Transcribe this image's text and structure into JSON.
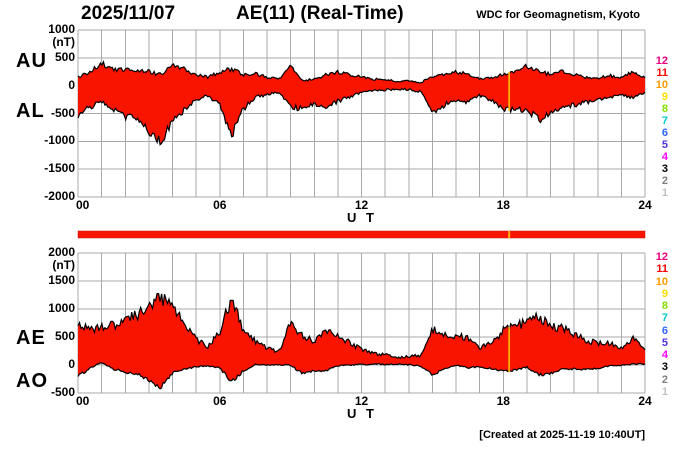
{
  "header": {
    "date": "2025/11/07",
    "title": "AE(11) (Real-Time)",
    "credit": "WDC for Geomagnetism, Kyoto"
  },
  "footer": {
    "created_note": "[Created at 2025-11-19 10:40UT]"
  },
  "palette": {
    "fill_red": "#F91400",
    "bar_red": "#F91400",
    "grid_gray": "#A8A8A8",
    "curve_black": "#000000",
    "marker_yellow": "#FFC000",
    "bar_marker_orange": "#FFAA00"
  },
  "station_count_scale": {
    "values": [
      12,
      11,
      10,
      9,
      8,
      7,
      6,
      5,
      4,
      3,
      2,
      1
    ],
    "colors": [
      "#E8007D",
      "#FF0000",
      "#FF9900",
      "#FFDD00",
      "#86DD00",
      "#00CCCC",
      "#3366FF",
      "#5533DD",
      "#FF00FF",
      "#000000",
      "#808080",
      "#C0C0C0"
    ]
  },
  "chart_data": [
    {
      "type": "area",
      "panel": "AU-AL",
      "ylabel_unit": "(nT)",
      "ylim": [
        -2000,
        1000
      ],
      "yticks": [
        1000,
        500,
        0,
        -500,
        -1000,
        -1500,
        -2000
      ],
      "xlabel": "U T",
      "xlim": [
        0,
        24
      ],
      "xticks": [
        "00",
        "06",
        "12",
        "18",
        "24"
      ],
      "xtick_hours": [
        0,
        6,
        12,
        18,
        24
      ],
      "grid": true,
      "marker_hour": 18.25,
      "x_hours": [
        0,
        0.5,
        1,
        1.5,
        2,
        2.5,
        3,
        3.5,
        4,
        4.5,
        5,
        5.5,
        6,
        6.5,
        7,
        7.5,
        8,
        8.5,
        9,
        9.5,
        10,
        10.5,
        11,
        11.5,
        12,
        12.5,
        13,
        13.5,
        14,
        14.5,
        15,
        15.5,
        16,
        16.5,
        17,
        17.5,
        18,
        18.5,
        19,
        19.5,
        20,
        20.5,
        21,
        21.5,
        22,
        22.5,
        23,
        23.5,
        24
      ],
      "series": [
        {
          "name": "AU",
          "values": [
            160,
            250,
            400,
            280,
            300,
            280,
            250,
            200,
            370,
            300,
            200,
            150,
            250,
            300,
            200,
            220,
            150,
            120,
            380,
            100,
            110,
            200,
            250,
            200,
            150,
            120,
            100,
            80,
            80,
            60,
            150,
            200,
            250,
            200,
            120,
            130,
            200,
            250,
            350,
            260,
            200,
            260,
            200,
            150,
            130,
            180,
            150,
            250,
            150
          ]
        },
        {
          "name": "AL",
          "values": [
            -560,
            -380,
            -300,
            -420,
            -550,
            -600,
            -800,
            -1000,
            -650,
            -450,
            -250,
            -180,
            -350,
            -900,
            -420,
            -200,
            -160,
            -120,
            -380,
            -420,
            -310,
            -400,
            -280,
            -200,
            -130,
            -90,
            -80,
            -60,
            -70,
            -110,
            -480,
            -350,
            -260,
            -300,
            -180,
            -260,
            -420,
            -440,
            -420,
            -620,
            -500,
            -400,
            -340,
            -300,
            -250,
            -210,
            -160,
            -220,
            -110
          ]
        }
      ]
    },
    {
      "type": "area",
      "panel": "AE-AO",
      "ylabel_unit": "(nT)",
      "ylim": [
        -500,
        2000
      ],
      "yticks": [
        2000,
        1500,
        1000,
        500,
        0,
        -500
      ],
      "xlabel": "U T",
      "xlim": [
        0,
        24
      ],
      "xticks": [
        "00",
        "06",
        "12",
        "18",
        "24"
      ],
      "xtick_hours": [
        0,
        6,
        12,
        18,
        24
      ],
      "grid": true,
      "marker_hour": 18.25,
      "x_hours": [
        0,
        0.5,
        1,
        1.5,
        2,
        2.5,
        3,
        3.5,
        4,
        4.5,
        5,
        5.5,
        6,
        6.5,
        7,
        7.5,
        8,
        8.5,
        9,
        9.5,
        10,
        10.5,
        11,
        11.5,
        12,
        12.5,
        13,
        13.5,
        14,
        14.5,
        15,
        15.5,
        16,
        16.5,
        17,
        17.5,
        18,
        18.5,
        19,
        19.5,
        20,
        20.5,
        21,
        21.5,
        22,
        22.5,
        23,
        23.5,
        24
      ],
      "series": [
        {
          "name": "AE",
          "values": [
            720,
            630,
            700,
            700,
            850,
            880,
            1050,
            1200,
            1020,
            750,
            450,
            330,
            600,
            1200,
            620,
            420,
            310,
            240,
            760,
            520,
            420,
            600,
            530,
            400,
            280,
            210,
            180,
            140,
            150,
            170,
            630,
            550,
            510,
            500,
            300,
            390,
            620,
            690,
            770,
            880,
            700,
            660,
            540,
            450,
            380,
            390,
            310,
            470,
            260
          ]
        },
        {
          "name": "AO",
          "values": [
            -200,
            -65,
            50,
            -70,
            -125,
            -160,
            -275,
            -400,
            -140,
            -75,
            -25,
            -15,
            -50,
            -300,
            -110,
            10,
            -5,
            0,
            0,
            -160,
            -100,
            -100,
            -15,
            0,
            10,
            15,
            10,
            10,
            5,
            -25,
            -165,
            -75,
            -5,
            -50,
            -30,
            -65,
            -110,
            -95,
            -35,
            -180,
            -150,
            -70,
            -70,
            -75,
            -60,
            -15,
            -5,
            15,
            20
          ]
        }
      ]
    }
  ]
}
